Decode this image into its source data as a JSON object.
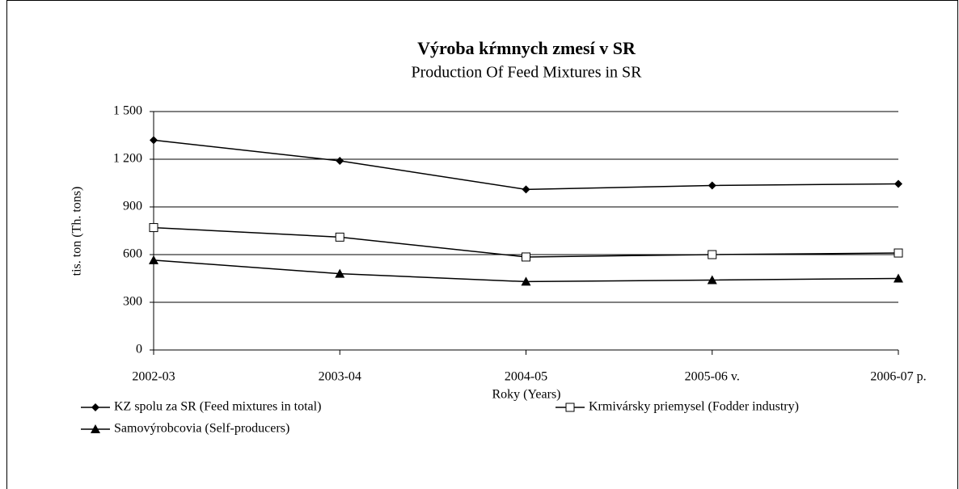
{
  "chart_data": {
    "type": "line",
    "title": "Výroba kŕmnych zmesí v SR",
    "subtitle": "Production Of Feed Mixtures in SR",
    "x_label": "Roky (Years)",
    "y_label": "tis. ton (Th. tons)",
    "categories": [
      "2002-03",
      "2003-04",
      "2004-05",
      "2005-06 v.",
      "2006-07 p."
    ],
    "series": [
      {
        "name": "KZ spolu za SR (Feed mixtures in total)",
        "color": "#000000",
        "marker": "diamond",
        "values": [
          1320,
          1190,
          1010,
          1035,
          1045
        ]
      },
      {
        "name": "Krmivársky priemysel (Fodder industry)",
        "color": "#000000",
        "marker": "square-open",
        "values": [
          770,
          710,
          585,
          600,
          610
        ]
      },
      {
        "name": "Samovýrobcovia (Self-producers)",
        "color": "#000000",
        "marker": "triangle",
        "values": [
          565,
          480,
          430,
          440,
          450
        ]
      }
    ],
    "ylim": [
      0,
      1500
    ],
    "yticks": [
      0,
      300,
      600,
      900,
      {
        "value": 1200,
        "label": "1 200"
      },
      {
        "value": 1500,
        "label": "1 500"
      }
    ],
    "grid": true,
    "legend": "bottom"
  }
}
